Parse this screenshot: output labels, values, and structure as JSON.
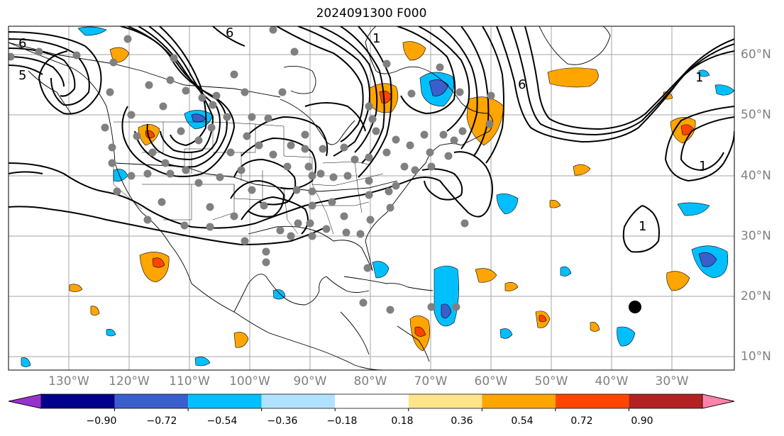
{
  "title": "2024091300 F000",
  "lat_labels": [
    "60°N",
    "50°N",
    "40°N",
    "30°N",
    "20°N",
    "10°N"
  ],
  "lon_labels": [
    "130°W",
    "120°W",
    "110°W",
    "100°W",
    "90°W",
    "80°W",
    "70°W",
    "60°W",
    "50°W",
    "40°W",
    "30°W"
  ],
  "colorbar": {
    "tick_labels": [
      "−0.90",
      "−0.72",
      "−0.54",
      "−0.36",
      "−0.18",
      "0.18",
      "0.36",
      "0.54",
      "0.72",
      "0.90"
    ],
    "colors": [
      "#9932cc",
      "#00008b",
      "#3a5fcd",
      "#00bfff",
      "#b0e2ff",
      "#ffffff",
      "#ffe48a",
      "#ffa500",
      "#ff4500",
      "#b22222",
      "#ff82ab"
    ]
  },
  "contour_labels": [
    "6",
    "5",
    "1",
    "6",
    "1",
    "1",
    "1",
    "6"
  ],
  "marker_color": "#000000"
}
